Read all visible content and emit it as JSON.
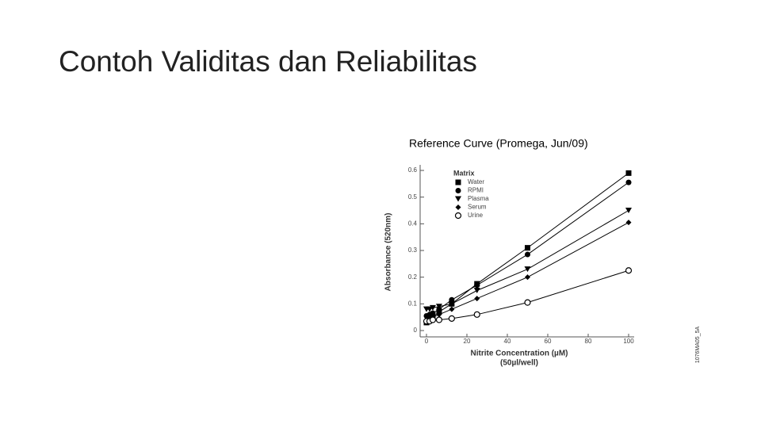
{
  "slide": {
    "title": "Contoh Validitas dan Reliabilitas"
  },
  "chart_data": {
    "type": "line",
    "title": "Reference Curve (Promega, Jun/09)",
    "y_label": "Absorbance (520nm)",
    "x_label": "Nitrite Concentration (µM)",
    "x_sublabel": "(50µl/well)",
    "legend_title": "Matrix",
    "legend": "upper left",
    "side_code": "1076MA05_5A",
    "x": [
      0,
      1.56,
      3.13,
      6.25,
      12.5,
      25,
      50,
      100
    ],
    "series": [
      {
        "name": "Water",
        "color": "#000000",
        "marker": "square",
        "values": [
          0.03,
          0.04,
          0.05,
          0.07,
          0.1,
          0.175,
          0.31,
          0.59
        ]
      },
      {
        "name": "RPMI",
        "color": "#000000",
        "marker": "circle",
        "values": [
          0.055,
          0.06,
          0.065,
          0.08,
          0.115,
          0.17,
          0.285,
          0.555
        ]
      },
      {
        "name": "Plasma",
        "color": "#000000",
        "marker": "triangle-down",
        "values": [
          0.08,
          0.08,
          0.085,
          0.09,
          0.1,
          0.15,
          0.23,
          0.45
        ]
      },
      {
        "name": "Serum",
        "color": "#000000",
        "marker": "diamond",
        "values": [
          0.04,
          0.045,
          0.05,
          0.06,
          0.08,
          0.12,
          0.2,
          0.405
        ]
      },
      {
        "name": "Urine",
        "color": "#000000",
        "marker": "open-circle",
        "values": [
          0.035,
          0.035,
          0.04,
          0.04,
          0.045,
          0.06,
          0.105,
          0.225
        ]
      }
    ],
    "xlim": [
      0,
      100
    ],
    "xticks": [
      0,
      20,
      40,
      60,
      80,
      100
    ],
    "ylim": [
      0,
      0.6
    ],
    "yticks": [
      0,
      0.1,
      0.2,
      0.3,
      0.4,
      0.5,
      0.6
    ]
  }
}
